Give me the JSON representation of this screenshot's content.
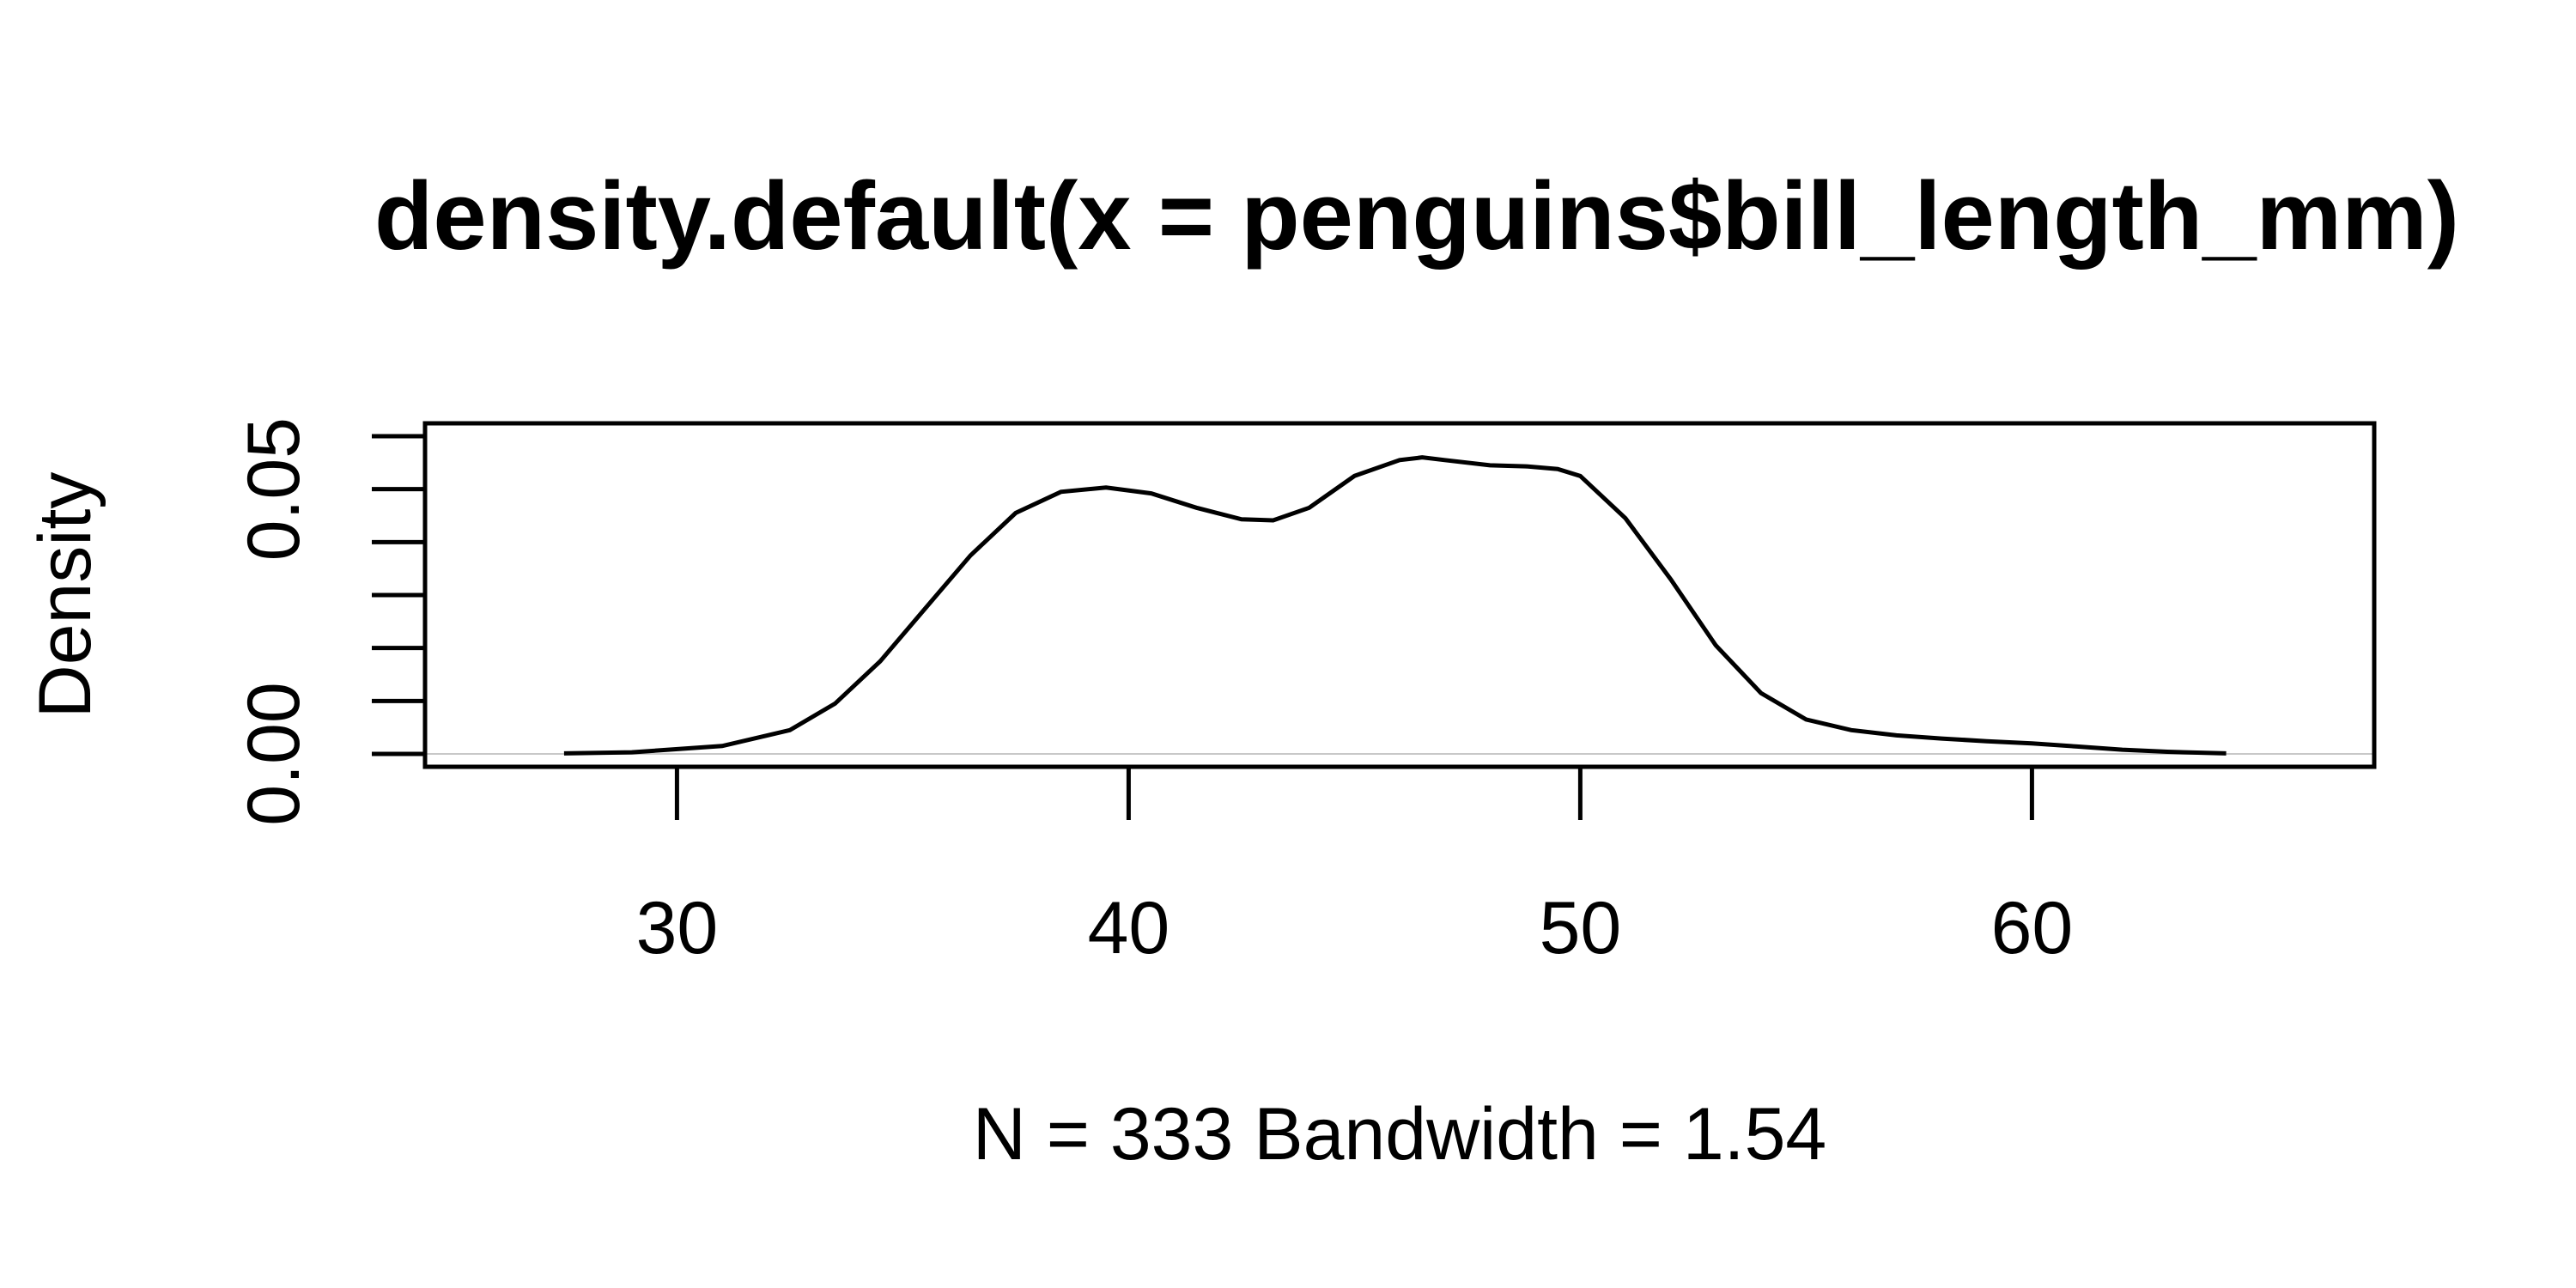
{
  "chart_data": {
    "type": "line",
    "title": "density.default(x = penguins$bill_length_mm)",
    "xlabel": "N = 333   Bandwidth = 1.54",
    "ylabel": "Density",
    "xlim": [
      26,
      66
    ],
    "ylim": [
      0,
      0.06
    ],
    "x_ticks": [
      30,
      40,
      50,
      60
    ],
    "x_tick_labels": [
      "30",
      "40",
      "50",
      "60"
    ],
    "y_ticks": [
      0,
      0.01,
      0.02,
      0.03,
      0.04,
      0.05,
      0.06
    ],
    "y_tick_labels": [
      "0.00",
      "0.05"
    ],
    "y_tick_label_values": [
      0,
      0.05
    ],
    "grid": false,
    "series": [
      {
        "x": [
          27.5,
          29,
          31,
          32.5,
          33.5,
          34.5,
          35.5,
          36.5,
          37.5,
          38.5,
          39.5,
          40.5,
          41.5,
          42.5,
          43.2,
          44,
          45,
          46,
          46.5,
          47,
          48,
          48.8,
          49.5,
          50,
          51,
          52,
          53,
          54,
          55,
          56,
          57,
          58,
          59,
          60,
          61,
          62,
          63,
          64.3
        ],
        "y": [
          0.0001,
          0.0003,
          0.0015,
          0.0045,
          0.0095,
          0.0175,
          0.0275,
          0.0375,
          0.0455,
          0.0495,
          0.0503,
          0.0492,
          0.0465,
          0.0443,
          0.0441,
          0.0465,
          0.0525,
          0.0555,
          0.056,
          0.0555,
          0.0545,
          0.0543,
          0.0538,
          0.0525,
          0.0445,
          0.033,
          0.0205,
          0.0115,
          0.0065,
          0.0045,
          0.0035,
          0.0029,
          0.0024,
          0.002,
          0.0014,
          0.0008,
          0.0004,
          0.0001
        ]
      }
    ]
  }
}
